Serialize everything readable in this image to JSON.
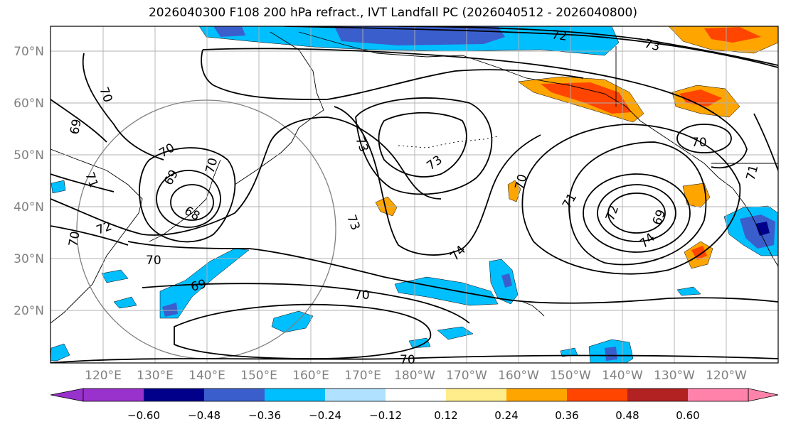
{
  "title": "2026040300 F108 200 hPa refract., IVT Landfall PC (2026040512 - 2026040800)",
  "lat_labels": [
    "70°N",
    "60°N",
    "50°N",
    "40°N",
    "30°N",
    "20°N"
  ],
  "lon_labels": [
    "120°E",
    "130°E",
    "140°E",
    "150°E",
    "160°E",
    "170°E",
    "180°W",
    "170°W",
    "160°W",
    "150°W",
    "140°W",
    "130°W",
    "120°W"
  ],
  "colorbar": {
    "ticks": [
      "−0.60",
      "−0.48",
      "−0.36",
      "−0.24",
      "−0.12",
      "0.12",
      "0.24",
      "0.36",
      "0.48",
      "0.60"
    ],
    "colors": [
      "#9932cc",
      "#00008b",
      "#3a5fcd",
      "#00bfff",
      "#b0e2ff",
      "#ffffff",
      "#ffec8b",
      "#ffa500",
      "#ff4500",
      "#b22222",
      "#ff82ab"
    ]
  },
  "contour_labels": [
    "72",
    "73",
    "70",
    "69",
    "70",
    "71",
    "72",
    "70",
    "69",
    "68",
    "70",
    "70",
    "69",
    "73",
    "73",
    "73",
    "74",
    "70",
    "71",
    "72",
    "69",
    "74",
    "70",
    "71",
    "70",
    "70"
  ],
  "colors": {
    "land_outline": "#000000",
    "grid": "#b0b0b0",
    "circle": "#808080",
    "contour": "#000000",
    "label": "#808080"
  }
}
